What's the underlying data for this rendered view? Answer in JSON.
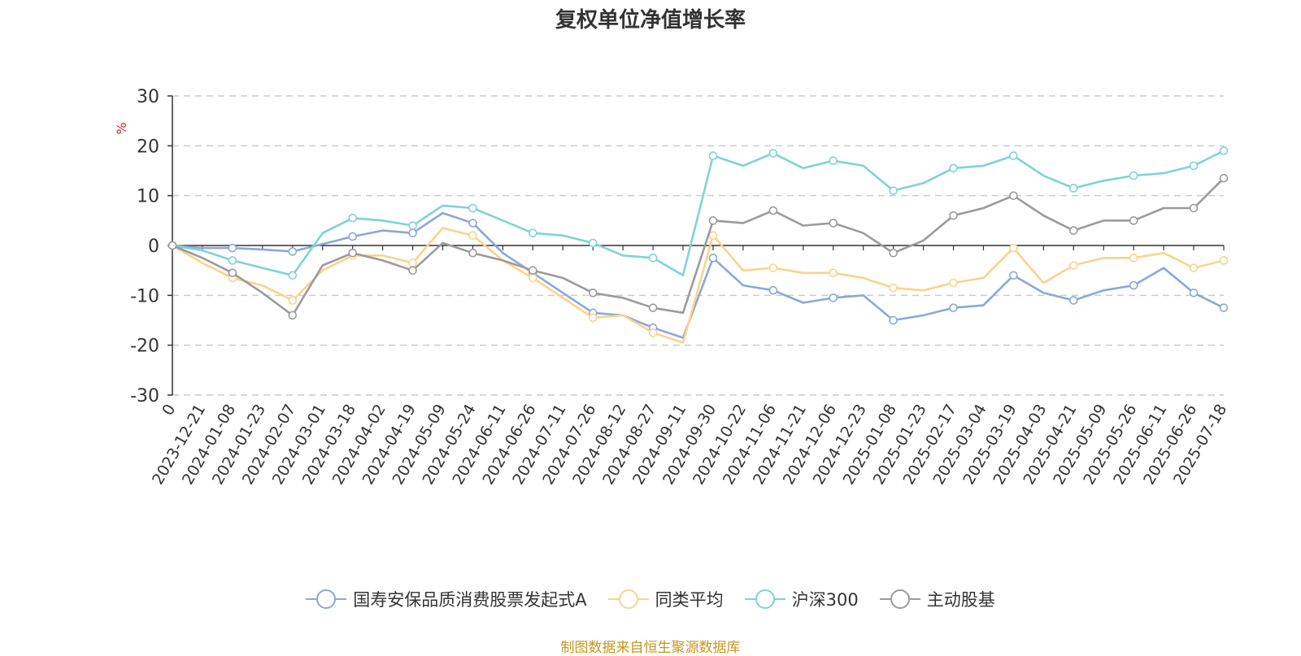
{
  "title": "复权单位净值增长率",
  "source": "制图数据来自恒生聚源数据库",
  "chart_data": {
    "type": "line",
    "title": "复权单位净值增长率",
    "ylabel": "%",
    "ylim": [
      -30,
      30
    ],
    "yticks": [
      30,
      20,
      10,
      0,
      -10,
      -20,
      -30
    ],
    "grid": true,
    "legend_position": "bottom",
    "x_tick_labels": [
      "0",
      "2023-12-21",
      "2024-01-08",
      "2024-01-23",
      "2024-02-07",
      "2024-03-01",
      "2024-03-18",
      "2024-04-02",
      "2024-04-19",
      "2024-05-09",
      "2024-05-24",
      "2024-06-11",
      "2024-06-26",
      "2024-07-11",
      "2024-07-26",
      "2024-08-12",
      "2024-08-27",
      "2024-09-11",
      "2024-09-30",
      "2024-10-22",
      "2024-11-06",
      "2024-11-21",
      "2024-12-06",
      "2024-12-23",
      "2025-01-08",
      "2025-01-23",
      "2025-02-17",
      "2025-03-04",
      "2025-03-19",
      "2025-04-03",
      "2025-04-21",
      "2025-05-09",
      "2025-05-26",
      "2025-06-11",
      "2025-06-26",
      "2025-07-18"
    ],
    "x": [
      "0",
      "2023-12-21",
      "2024-01-08",
      "2024-01-23",
      "2024-02-07",
      "2024-03-01",
      "2024-03-18",
      "2024-04-02",
      "2024-04-19",
      "2024-05-09",
      "2024-05-24",
      "2024-06-11",
      "2024-06-26",
      "2024-07-11",
      "2024-07-26",
      "2024-08-12",
      "2024-08-27",
      "2024-09-11",
      "2024-09-30",
      "2024-10-22",
      "2024-11-06",
      "2024-11-21",
      "2024-12-06",
      "2024-12-23",
      "2025-01-08",
      "2025-01-23",
      "2025-02-17",
      "2025-03-04",
      "2025-03-19",
      "2025-04-03",
      "2025-04-21",
      "2025-05-09",
      "2025-05-26",
      "2025-06-11",
      "2025-06-26",
      "2025-07-18"
    ],
    "series": [
      {
        "name": "国寿安保品质消费股票发起式A",
        "color": "#8aa8d8",
        "values": [
          0,
          -0.5,
          -0.5,
          -0.8,
          -1.2,
          0.3,
          1.8,
          3.0,
          2.5,
          6.5,
          4.5,
          -1.5,
          -5.5,
          -9.5,
          -13.5,
          -14.0,
          -16.5,
          -18.5,
          -2.5,
          -8.0,
          -9.0,
          -11.5,
          -10.5,
          -10.0,
          -15.0,
          -14.0,
          -12.5,
          -12.0,
          -6.0,
          -9.5,
          -11.0,
          -9.0,
          -8.0,
          -4.5,
          -9.5,
          -12.5
        ]
      },
      {
        "name": "同类平均",
        "color": "#fbd38b",
        "values": [
          0,
          -3.5,
          -6.5,
          -8.0,
          -11.0,
          -5.0,
          -2.0,
          -2.0,
          -3.5,
          3.5,
          2.0,
          -3.0,
          -6.5,
          -10.5,
          -14.5,
          -14.0,
          -17.5,
          -19.5,
          2.0,
          -5.0,
          -4.5,
          -5.5,
          -5.5,
          -6.5,
          -8.5,
          -9.0,
          -7.5,
          -6.5,
          -0.5,
          -7.5,
          -4.0,
          -2.5,
          -2.5,
          -1.5,
          -4.5,
          -3.0
        ]
      },
      {
        "name": "沪深300",
        "color": "#7fd3d3",
        "values": [
          0,
          -1.0,
          -3.0,
          -4.5,
          -6.0,
          2.5,
          5.5,
          5.0,
          4.0,
          8.0,
          7.5,
          5.0,
          2.5,
          2.0,
          0.5,
          -2.0,
          -2.5,
          -6.0,
          18.0,
          16.0,
          18.5,
          15.5,
          17.0,
          16.0,
          11.0,
          12.5,
          15.5,
          16.0,
          18.0,
          14.0,
          11.5,
          13.0,
          14.0,
          14.5,
          16.0,
          19.0
        ]
      },
      {
        "name": "主动股基",
        "color": "#9b9b9b",
        "values": [
          0,
          -2.5,
          -5.5,
          -9.5,
          -14.0,
          -4.0,
          -1.5,
          -3.0,
          -5.0,
          0.5,
          -1.5,
          -3.0,
          -5.0,
          -6.5,
          -9.5,
          -10.5,
          -12.5,
          -13.5,
          5.0,
          4.5,
          7.0,
          4.0,
          4.5,
          2.5,
          -1.5,
          1.0,
          6.0,
          7.5,
          10.0,
          6.0,
          3.0,
          5.0,
          5.0,
          7.5,
          7.5,
          13.5
        ]
      }
    ]
  }
}
